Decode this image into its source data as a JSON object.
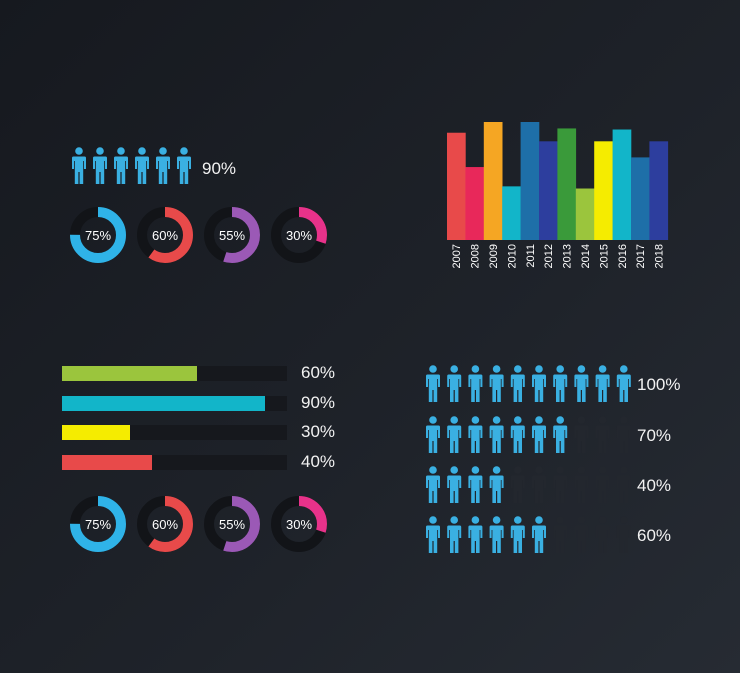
{
  "colors": {
    "person_active": "#3ab0e2",
    "person_inactive": "#23272e",
    "track": "#16181d",
    "donut_track": "#121418"
  },
  "people_top": {
    "count": 6,
    "label": "90%"
  },
  "donuts_top": [
    {
      "label": "75%",
      "value": 75,
      "color": "#2fb3e8"
    },
    {
      "label": "60%",
      "value": 60,
      "color": "#e84a4a"
    },
    {
      "label": "55%",
      "value": 55,
      "color": "#9b59b6"
    },
    {
      "label": "30%",
      "value": 30,
      "color": "#e8328a"
    }
  ],
  "hbars": [
    {
      "label": "60%",
      "value": 60,
      "color": "#9bc53d"
    },
    {
      "label": "90%",
      "value": 90,
      "color": "#12b5c9"
    },
    {
      "label": "30%",
      "value": 30,
      "color": "#f5ec00"
    },
    {
      "label": "40%",
      "value": 40,
      "color": "#e84a4a"
    }
  ],
  "donuts_bottom": [
    {
      "label": "75%",
      "value": 75,
      "color": "#2fb3e8"
    },
    {
      "label": "60%",
      "value": 60,
      "color": "#e84a4a"
    },
    {
      "label": "55%",
      "value": 55,
      "color": "#9b59b6"
    },
    {
      "label": "30%",
      "value": 30,
      "color": "#e8328a"
    }
  ],
  "people_rows": [
    {
      "active": 10,
      "total": 10,
      "label": "100%"
    },
    {
      "active": 7,
      "total": 10,
      "label": "70%"
    },
    {
      "active": 4,
      "total": 10,
      "label": "40%"
    },
    {
      "active": 6,
      "total": 10,
      "label": "60%"
    }
  ],
  "chart_data": {
    "type": "bar",
    "categories": [
      "2007",
      "2008",
      "2009",
      "2010",
      "2011",
      "2012",
      "2013",
      "2014",
      "2015",
      "2016",
      "2017",
      "2018"
    ],
    "series": [
      {
        "values": [
          100,
          68,
          110,
          50,
          110,
          92,
          104,
          48,
          92,
          103,
          77,
          92
        ],
        "colors": [
          "#e84a4a",
          "#e8285a",
          "#f5a623",
          "#12b5c9",
          "#1e6fa8",
          "#2d3e9e",
          "#3a9a3a",
          "#9bc53d",
          "#f5ec00",
          "#12b5c9",
          "#1e6fa8",
          "#2d3e9e"
        ]
      }
    ],
    "title": "",
    "xlabel": "",
    "ylabel": "",
    "ylim": [
      0,
      110
    ],
    "grid": false
  }
}
